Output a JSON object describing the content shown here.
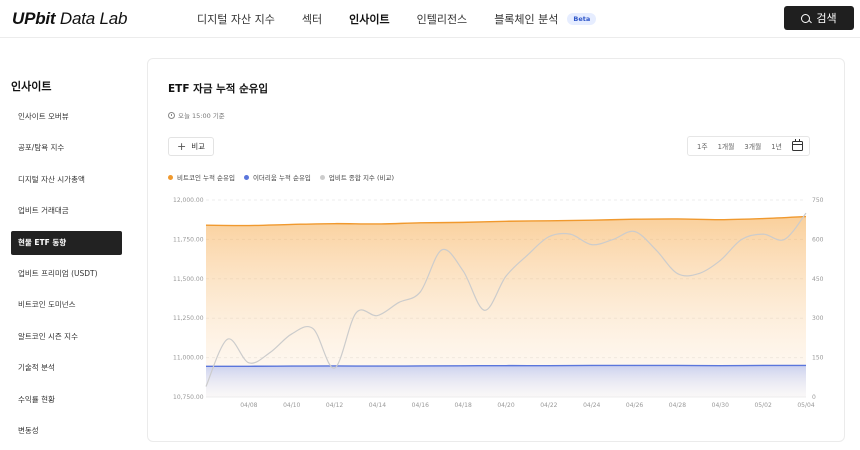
{
  "header": {
    "logo_bold": "UPbit",
    "logo_rest": " Data Lab",
    "nav": [
      "디지털 자산 지수",
      "섹터",
      "인사이트",
      "인텔리전스",
      "블록체인 분석"
    ],
    "nav_active_index": 2,
    "beta_badge": "Beta",
    "search_label": "검색"
  },
  "sidebar": {
    "title": "인사이트",
    "items": [
      "인사이트 오버뷰",
      "공포/탐욕 지수",
      "디지털 자산 시가총액",
      "업비트 거래대금",
      "현물 ETF 동향",
      "업비트 프리미엄 (USDT)",
      "비트코인 도미넌스",
      "알트코인 시즌 지수",
      "기술적 분석",
      "수익률 현황",
      "변동성"
    ],
    "active_index": 4
  },
  "card": {
    "title": "ETF 자금 누적 순유입",
    "timestamp": "오늘 15:00 기준",
    "compare_label": "비교",
    "ranges": [
      "1주",
      "1개월",
      "3개월",
      "1년"
    ]
  },
  "colors": {
    "btc": "#f0992e",
    "eth": "#5b76dc",
    "index": "#cccccc",
    "accent_dark": "#1f1f1f"
  },
  "chart_data": {
    "type": "area",
    "legend": [
      "비트코인 누적 순유입",
      "이더리움 누적 순유입",
      "업비트 종합 지수 (비교)"
    ],
    "x_ticks": [
      "04/08",
      "04/10",
      "04/12",
      "04/14",
      "04/16",
      "04/18",
      "04/20",
      "04/22",
      "04/24",
      "04/26",
      "04/28",
      "04/30",
      "05/02",
      "05/04"
    ],
    "y_left_ticks": [
      "12,000.00",
      "11,750.00",
      "11,500.00",
      "11,250.00",
      "11,000.00",
      "10,750.00"
    ],
    "y_left_range": [
      10750,
      12000
    ],
    "y_right_ticks": [
      "750",
      "600",
      "450",
      "300",
      "150",
      "0"
    ],
    "y_right_range": [
      0,
      750
    ],
    "x_range": [
      0,
      28
    ],
    "series": [
      {
        "name": "비트코인 누적 순유입",
        "axis": "left",
        "x": [
          0,
          2,
          4,
          6,
          8,
          10,
          12,
          14,
          16,
          18,
          20,
          22,
          24,
          26,
          28
        ],
        "values": [
          11840,
          11838,
          11845,
          11850,
          11848,
          11855,
          11858,
          11865,
          11868,
          11872,
          11878,
          11880,
          11875,
          11882,
          11895
        ]
      },
      {
        "name": "이더리움 누적 순유입",
        "axis": "left",
        "x": [
          0,
          2,
          4,
          6,
          8,
          10,
          12,
          14,
          16,
          18,
          20,
          22,
          24,
          26,
          28
        ],
        "values": [
          10945,
          10945,
          10946,
          10947,
          10946,
          10947,
          10948,
          10949,
          10949,
          10950,
          10950,
          10950,
          10949,
          10950,
          10950
        ]
      },
      {
        "name": "업비트 종합 지수 (비교)",
        "axis": "right",
        "x": [
          0,
          1,
          2,
          3,
          4,
          5,
          6,
          7,
          8,
          9,
          10,
          11,
          12,
          13,
          14,
          15,
          16,
          17,
          18,
          19,
          20,
          21,
          22,
          23,
          24,
          25,
          26,
          27,
          28
        ],
        "values": [
          40,
          220,
          130,
          170,
          240,
          260,
          110,
          320,
          310,
          360,
          400,
          560,
          480,
          330,
          460,
          540,
          610,
          620,
          580,
          600,
          630,
          560,
          470,
          470,
          520,
          600,
          620,
          600,
          700
        ]
      }
    ]
  }
}
